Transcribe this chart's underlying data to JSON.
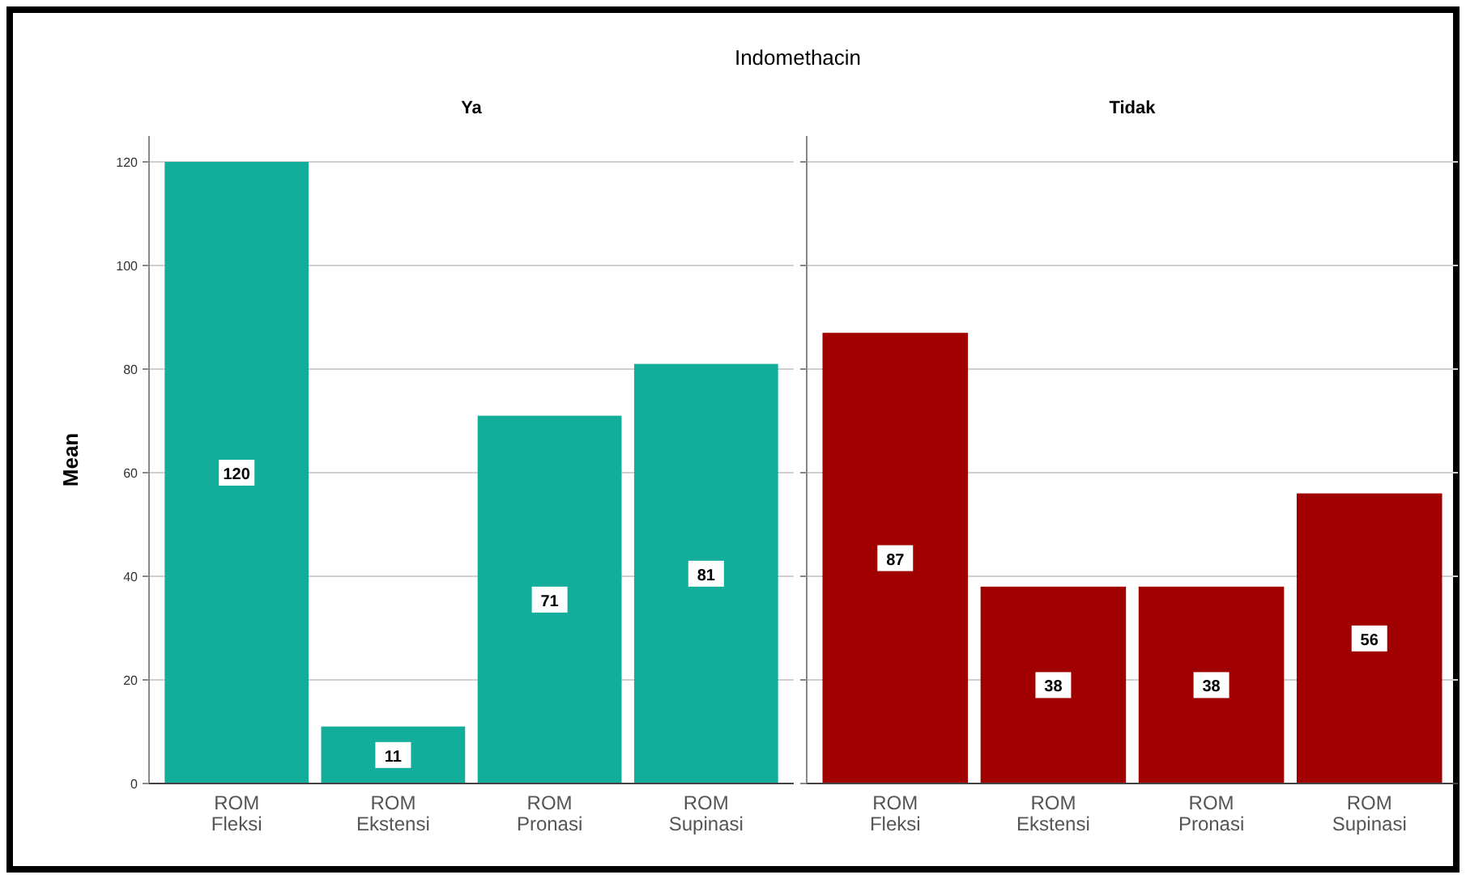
{
  "chart_data": [
    {
      "type": "bar",
      "title": "Indomethacin",
      "subtitle": "Ya",
      "ylabel": "Mean",
      "categories": [
        "ROM Fleksi",
        "ROM Ekstensi",
        "ROM Pronasi",
        "ROM Supinasi"
      ],
      "values": [
        120,
        11,
        71,
        81
      ],
      "color": "#13ae9b",
      "ylim": [
        0,
        125
      ],
      "yticks": [
        0,
        20,
        40,
        60,
        80,
        100,
        120
      ],
      "grid": "y",
      "data_labels": true
    },
    {
      "type": "bar",
      "subtitle": "Tidak",
      "categories": [
        "ROM Fleksi",
        "ROM Ekstensi",
        "ROM Pronasi",
        "ROM Supinasi"
      ],
      "values": [
        87,
        38,
        38,
        56
      ],
      "color": "#a00000",
      "ylim": [
        0,
        125
      ],
      "yticks": [
        0,
        20,
        40,
        60,
        80,
        100,
        120
      ],
      "grid": "y",
      "data_labels": true,
      "tick_labels": "x"
    }
  ]
}
